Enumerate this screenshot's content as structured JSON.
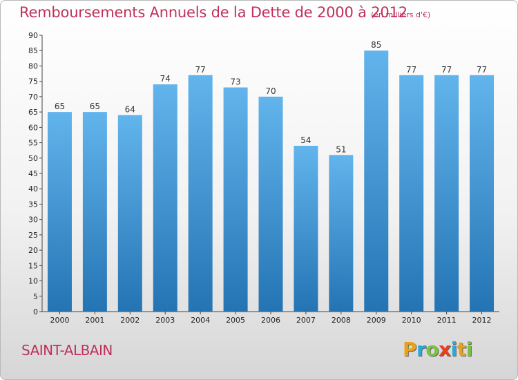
{
  "title": "Remboursements Annuels de la Dette de 2000 à 2012",
  "unit": "(en milliers d'€)",
  "commune": "SAINT-ALBAIN",
  "logo": {
    "letters": [
      "P",
      "r",
      "o",
      "x",
      "i",
      "t",
      "i"
    ],
    "colors": [
      "#e8a21a",
      "#2aa9d8",
      "#7cc242",
      "#e8401c",
      "#2aa9d8",
      "#e8a21a",
      "#7cc242"
    ]
  },
  "colors": {
    "bar_top": "#62b4ec",
    "bar_bottom": "#2474b4",
    "text_accent": "#c0305a"
  },
  "chart_data": {
    "type": "bar",
    "categories": [
      "2000",
      "2001",
      "2002",
      "2003",
      "2004",
      "2005",
      "2006",
      "2007",
      "2008",
      "2009",
      "2010",
      "2011",
      "2012"
    ],
    "values": [
      65,
      65,
      64,
      74,
      77,
      73,
      70,
      54,
      51,
      85,
      77,
      77,
      77
    ],
    "ylim": [
      0,
      90
    ],
    "ytick_step": 5,
    "grid": false,
    "legend": "none"
  }
}
